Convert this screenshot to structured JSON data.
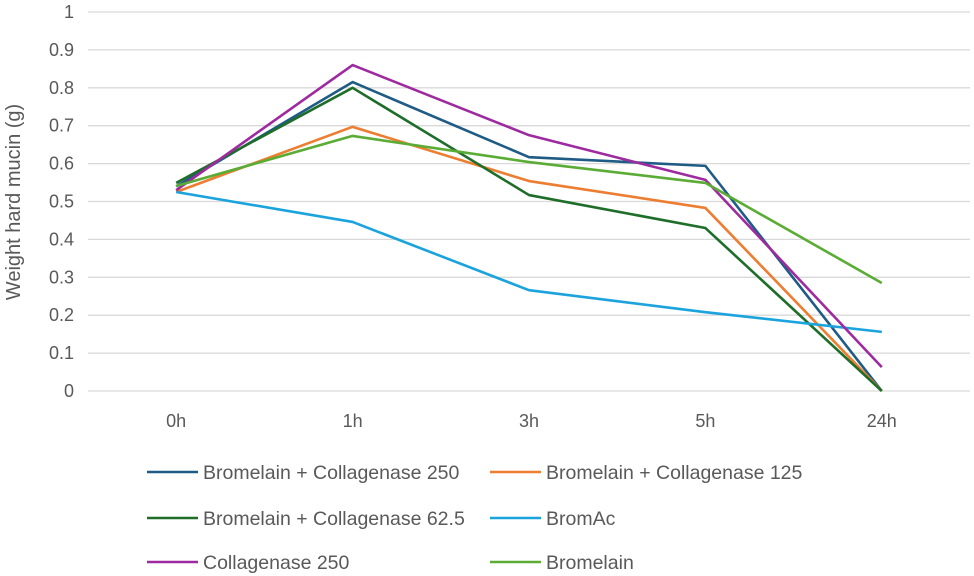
{
  "chart_data": {
    "type": "line",
    "title": "",
    "xlabel": "",
    "ylabel": "Weight hard mucin (g)",
    "ylim": [
      0,
      1
    ],
    "ytick_step": 0.1,
    "yticks": [
      "0",
      "0.1",
      "0.2",
      "0.3",
      "0.4",
      "0.5",
      "0.6",
      "0.7",
      "0.8",
      "0.9",
      "1"
    ],
    "grid": true,
    "legend_placement": "bottom",
    "categories": [
      "0h",
      "1h",
      "3h",
      "5h",
      "24h"
    ],
    "series": [
      {
        "name": "Bromelain + Collagenase 250",
        "color": "#1f5c85",
        "values": [
          0.54,
          0.815,
          0.617,
          0.594,
          0.0
        ]
      },
      {
        "name": "Bromelain + Collagenase 125",
        "color": "#ed7d31",
        "values": [
          0.525,
          0.697,
          0.554,
          0.483,
          0.0
        ]
      },
      {
        "name": "Bromelain + Collagenase 62.5",
        "color": "#1e6e2a",
        "values": [
          0.549,
          0.8,
          0.517,
          0.43,
          0.0
        ]
      },
      {
        "name": "BromAc",
        "color": "#1aa3dc",
        "values": [
          0.525,
          0.446,
          0.266,
          0.208,
          0.156
        ]
      },
      {
        "name": "Collagenase 250",
        "color": "#9e2aa0",
        "values": [
          0.53,
          0.86,
          0.675,
          0.557,
          0.063
        ]
      },
      {
        "name": "Bromelain",
        "color": "#5aac34",
        "values": [
          0.541,
          0.673,
          0.604,
          0.549,
          0.285
        ]
      }
    ]
  }
}
